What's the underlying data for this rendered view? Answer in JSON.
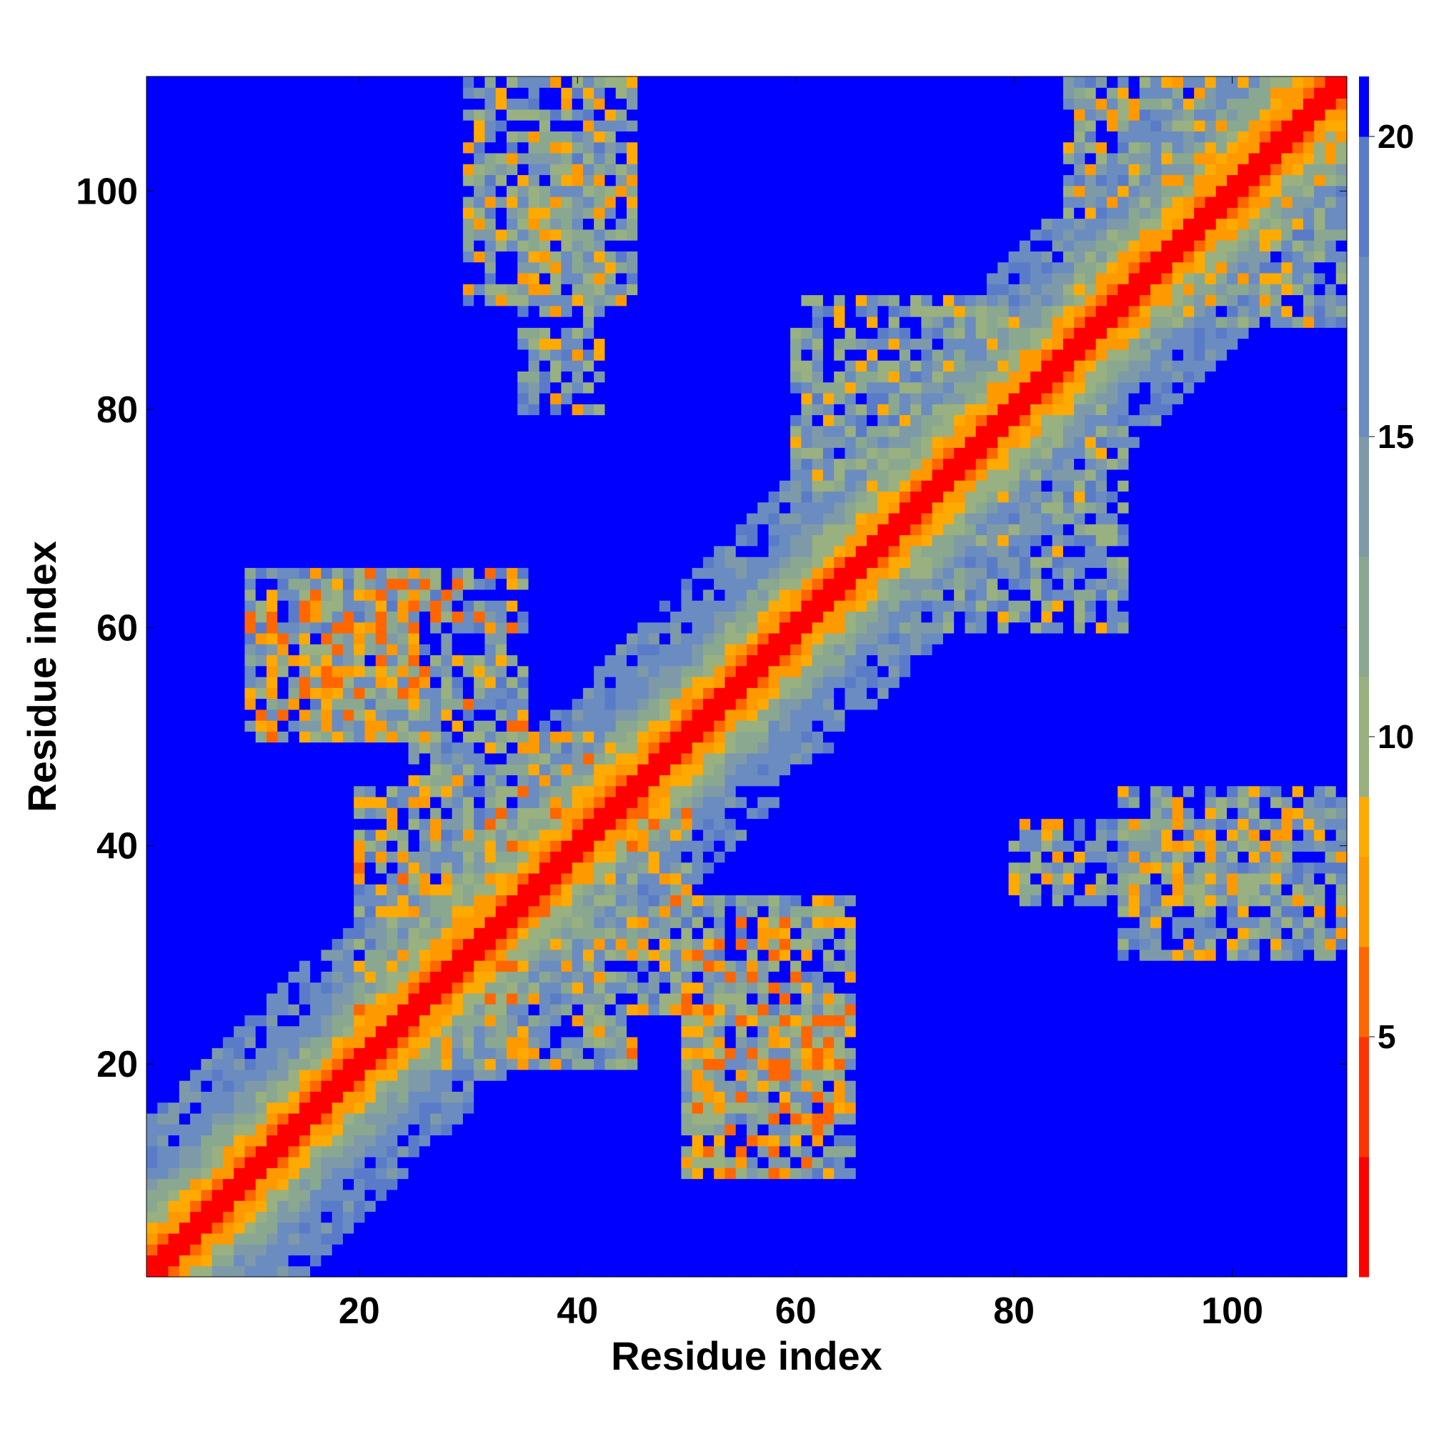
{
  "chart_data": {
    "type": "heatmap",
    "title": "",
    "xlabel": "Residue index",
    "ylabel": "Residue index",
    "n": 110,
    "xlim": [
      1,
      110
    ],
    "ylim": [
      1,
      110
    ],
    "xticks": [
      20,
      40,
      60,
      80,
      100
    ],
    "yticks": [
      20,
      40,
      60,
      80,
      100
    ],
    "colorbar": {
      "range": [
        1,
        21
      ],
      "ticks": [
        5,
        10,
        15,
        20
      ],
      "colors": [
        "#ff0000",
        "#ff3300",
        "#ff6600",
        "#ff9900",
        "#ffaa00",
        "#99b080",
        "#8aa890",
        "#7e9aa8",
        "#6a8cc0",
        "#5a7cc8",
        "#0000ff"
      ],
      "stops": [
        1,
        3,
        5,
        6.5,
        8,
        9,
        11,
        13,
        15,
        18,
        20,
        21
      ]
    },
    "model": {
      "description_key": "distance_map",
      "cap": 21,
      "diagonal_width": 1.5,
      "contact_regions": [
        {
          "x": [
            15,
            35
          ],
          "y": [
            50,
            65
          ],
          "min": 5,
          "max": 17
        },
        {
          "x": [
            50,
            65
          ],
          "y": [
            15,
            35
          ],
          "min": 5,
          "max": 17
        },
        {
          "x": [
            20,
            50
          ],
          "y": [
            25,
            45
          ],
          "min": 6,
          "max": 17
        },
        {
          "x": [
            25,
            45
          ],
          "y": [
            20,
            50
          ],
          "min": 6,
          "max": 17
        },
        {
          "x": [
            35,
            42
          ],
          "y": [
            80,
            105
          ],
          "min": 7,
          "max": 18
        },
        {
          "x": [
            80,
            105
          ],
          "y": [
            35,
            42
          ],
          "min": 7,
          "max": 18
        },
        {
          "x": [
            85,
            110
          ],
          "y": [
            88,
            110
          ],
          "min": 7,
          "max": 17
        },
        {
          "x": [
            50,
            65
          ],
          "y": [
            10,
            25
          ],
          "min": 5,
          "max": 17
        },
        {
          "x": [
            10,
            25
          ],
          "y": [
            50,
            65
          ],
          "min": 5,
          "max": 17
        },
        {
          "x": [
            70,
            90
          ],
          "y": [
            60,
            80
          ],
          "min": 8,
          "max": 18
        },
        {
          "x": [
            60,
            80
          ],
          "y": [
            70,
            90
          ],
          "min": 8,
          "max": 18
        },
        {
          "x": [
            90,
            110
          ],
          "y": [
            30,
            45
          ],
          "min": 7,
          "max": 18
        },
        {
          "x": [
            30,
            45
          ],
          "y": [
            90,
            110
          ],
          "min": 7,
          "max": 18
        }
      ]
    }
  }
}
